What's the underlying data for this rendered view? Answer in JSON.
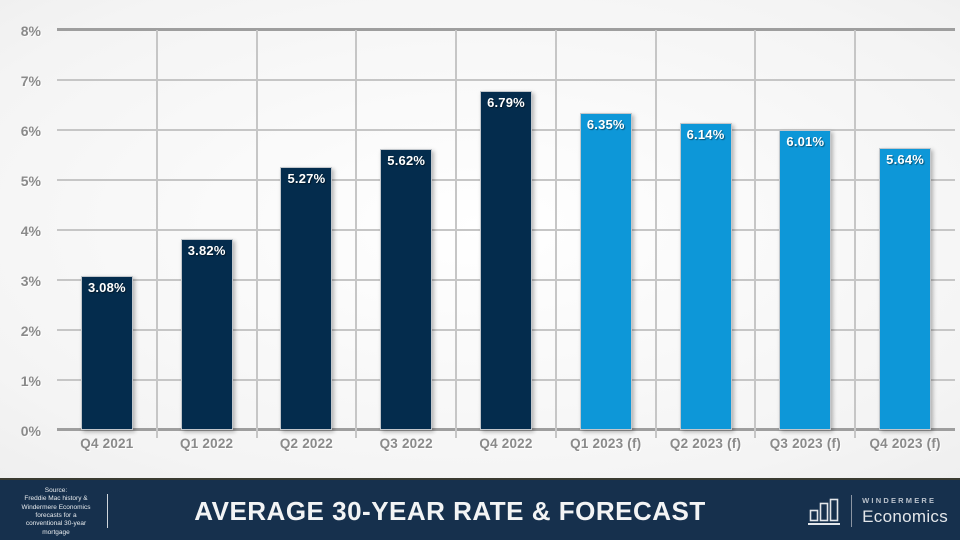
{
  "chart_data": {
    "type": "bar",
    "categories": [
      "Q4 2021",
      "Q1 2022",
      "Q2 2022",
      "Q3 2022",
      "Q4 2022",
      "Q1 2023 (f)",
      "Q2 2023 (f)",
      "Q3 2023 (f)",
      "Q4 2023 (f)"
    ],
    "values": [
      3.08,
      3.82,
      5.27,
      5.62,
      6.79,
      6.35,
      6.14,
      6.01,
      5.64
    ],
    "labels": [
      "3.08%",
      "3.82%",
      "5.27%",
      "5.62%",
      "6.79%",
      "6.35%",
      "6.14%",
      "6.01%",
      "5.64%"
    ],
    "forecast_flags": [
      false,
      false,
      false,
      false,
      false,
      true,
      true,
      true,
      true
    ],
    "ylim": [
      0,
      8
    ],
    "ytick_labels": [
      "0%",
      "1%",
      "2%",
      "3%",
      "4%",
      "5%",
      "6%",
      "7%",
      "8%"
    ],
    "grid": true,
    "legend": "none",
    "colors": {
      "historical": "#042c4d",
      "forecast": "#0d97d8"
    }
  },
  "footer": {
    "source_lines": [
      "Source:",
      "Freddie Mac history &",
      "Windermere Economics",
      "forecasts for a",
      "conventional 30-year",
      "mortgage"
    ],
    "title": "AVERAGE 30-YEAR RATE & FORECAST",
    "brand_top": "WINDERMERE",
    "brand_bottom": "Economics"
  }
}
